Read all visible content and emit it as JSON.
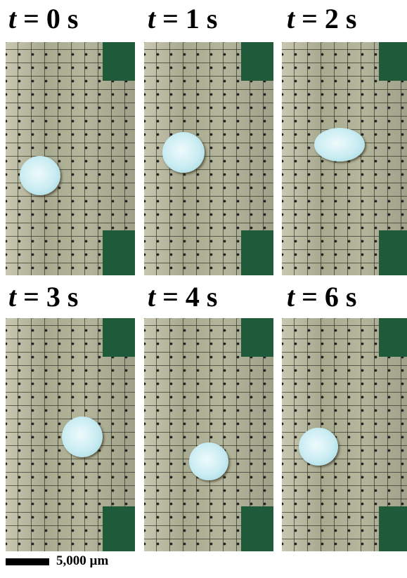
{
  "panels": [
    {
      "label": "t = 0 s"
    },
    {
      "label": "t = 1 s"
    },
    {
      "label": "t = 2 s"
    },
    {
      "label": "t = 3 s"
    },
    {
      "label": "t = 4 s"
    },
    {
      "label": "t = 6 s"
    }
  ],
  "scale_bar": {
    "label": "5,000 µm"
  }
}
